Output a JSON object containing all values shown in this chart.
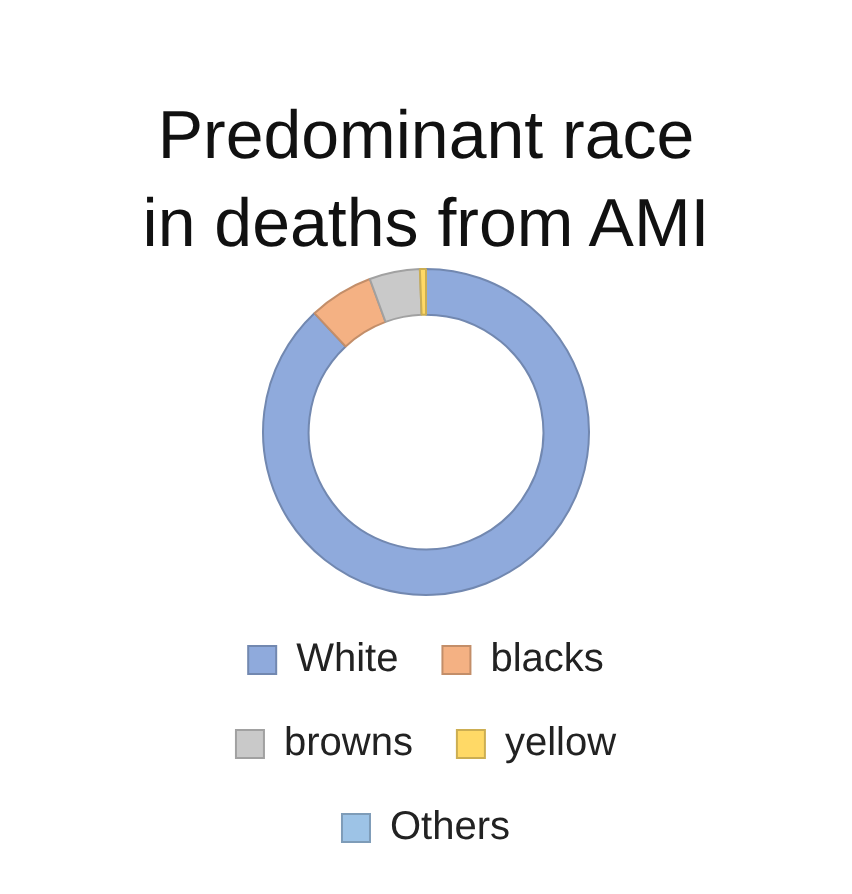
{
  "chart_data": {
    "type": "donut",
    "title": "Predominant race in deaths from AMI",
    "categories": [
      "White",
      "blacks",
      "browns",
      "yellow",
      "Others"
    ],
    "values": [
      88,
      6.4,
      5,
      0.6,
      0
    ],
    "colors": [
      "#8faadc",
      "#f4b183",
      "#c9c9c9",
      "#ffd966",
      "#9dc3e6"
    ],
    "legend": "bottom"
  }
}
